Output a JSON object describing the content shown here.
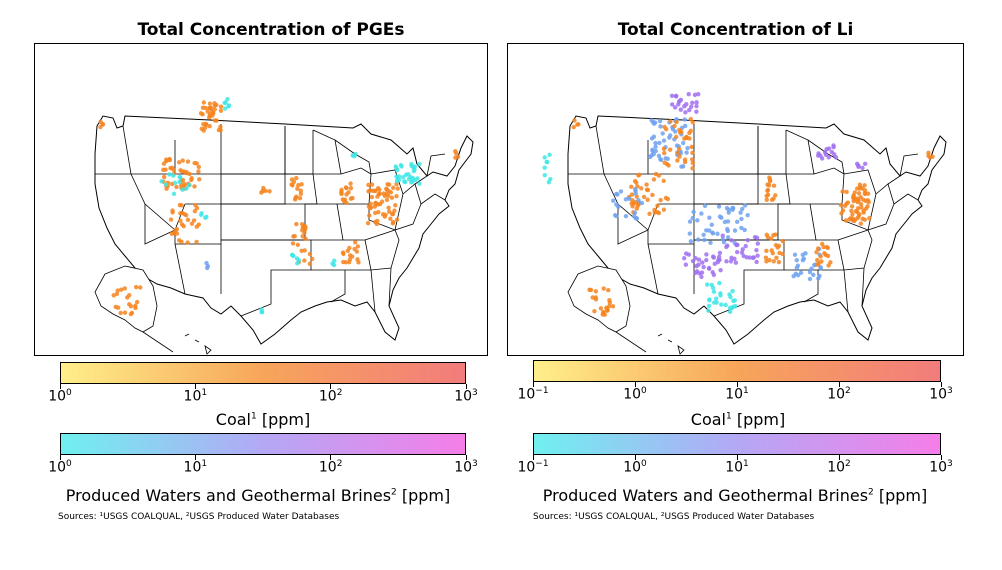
{
  "panels": [
    {
      "title": "Total Concentration of PGEs",
      "coal_colorbar": {
        "ticks": [
          {
            "base": "10",
            "exp": "0"
          },
          {
            "base": "10",
            "exp": "1"
          },
          {
            "base": "10",
            "exp": "2"
          },
          {
            "base": "10",
            "exp": "3"
          }
        ],
        "label": "Coal",
        "label_sup": "1",
        "unit": " [ppm]",
        "range_log10": [
          0,
          3
        ],
        "colors": [
          "#ffef8a",
          "#f7a55a",
          "#f27c7c"
        ]
      },
      "water_colorbar": {
        "ticks": [
          {
            "base": "10",
            "exp": "0"
          },
          {
            "base": "10",
            "exp": "1"
          },
          {
            "base": "10",
            "exp": "2"
          },
          {
            "base": "10",
            "exp": "3"
          }
        ],
        "label": "Produced Waters and Geothermal Brines",
        "label_sup": "2",
        "unit": " [ppm]",
        "range_log10": [
          0,
          3
        ],
        "colors": [
          "#6ff0f0",
          "#b4a8f5",
          "#f57ee8"
        ]
      },
      "sources": "Sources: ¹USGS COALQUAL, ²USGS Produced Water Databases"
    },
    {
      "title": "Total Concentration of Li",
      "coal_colorbar": {
        "ticks": [
          {
            "base": "10",
            "exp": "−1"
          },
          {
            "base": "10",
            "exp": "0"
          },
          {
            "base": "10",
            "exp": "1"
          },
          {
            "base": "10",
            "exp": "2"
          },
          {
            "base": "10",
            "exp": "3"
          }
        ],
        "label": "Coal",
        "label_sup": "1",
        "unit": " [ppm]",
        "range_log10": [
          -1,
          3
        ],
        "colors": [
          "#ffef8a",
          "#f7a55a",
          "#f27c7c"
        ]
      },
      "water_colorbar": {
        "ticks": [
          {
            "base": "10",
            "exp": "−1"
          },
          {
            "base": "10",
            "exp": "0"
          },
          {
            "base": "10",
            "exp": "1"
          },
          {
            "base": "10",
            "exp": "2"
          },
          {
            "base": "10",
            "exp": "3"
          }
        ],
        "label": "Produced Waters and Geothermal Brines",
        "label_sup": "2",
        "unit": " [ppm]",
        "range_log10": [
          -1,
          3
        ],
        "colors": [
          "#6ff0f0",
          "#b4a8f5",
          "#f57ee8"
        ]
      },
      "sources": "Sources: ¹USGS COALQUAL, ²USGS Produced Water Databases"
    }
  ],
  "marker_colors": {
    "coal": "#f6841f",
    "water_low": "#3ee6e6",
    "water_mid": "#6fa2f0",
    "water_high": "#a070f0"
  }
}
